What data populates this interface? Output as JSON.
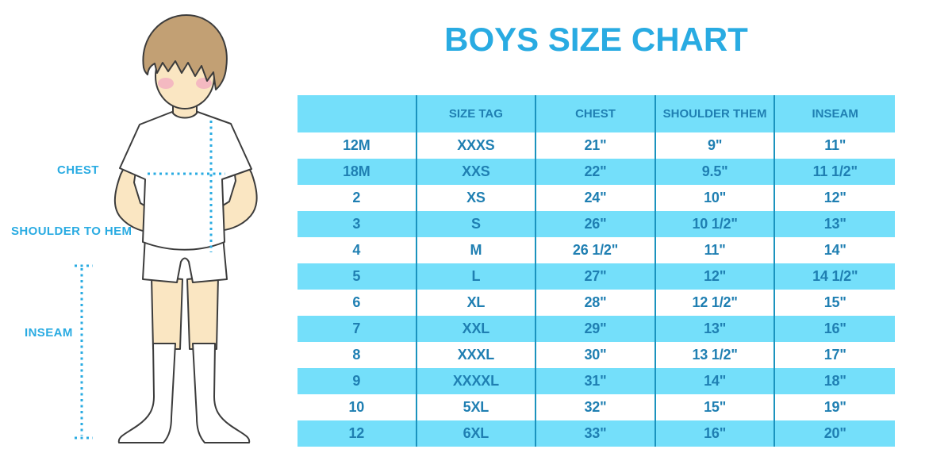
{
  "title": "BOYS SIZE CHART",
  "diagram": {
    "labels": {
      "chest": "CHEST",
      "shoulder_to_hem": "SHOULDER TO HEM",
      "inseam": "INSEAM"
    }
  },
  "table": {
    "headers": [
      "",
      "SIZE TAG",
      "CHEST",
      "SHOULDER THEM",
      "INSEAM"
    ],
    "rows": [
      [
        "12M",
        "XXXS",
        "21\"",
        "9\"",
        "11\""
      ],
      [
        "18M",
        "XXS",
        "22\"",
        "9.5\"",
        "11 1/2\""
      ],
      [
        "2",
        "XS",
        "24\"",
        "10\"",
        "12\""
      ],
      [
        "3",
        "S",
        "26\"",
        "10 1/2\"",
        "13\""
      ],
      [
        "4",
        "M",
        "26 1/2\"",
        "11\"",
        "14\""
      ],
      [
        "5",
        "L",
        "27\"",
        "12\"",
        "14 1/2\""
      ],
      [
        "6",
        "XL",
        "28\"",
        "12 1/2\"",
        "15\""
      ],
      [
        "7",
        "XXL",
        "29\"",
        "13\"",
        "16\""
      ],
      [
        "8",
        "XXXL",
        "30\"",
        "13 1/2\"",
        "17\""
      ],
      [
        "9",
        "XXXXL",
        "31\"",
        "14\"",
        "18\""
      ],
      [
        "10",
        "5XL",
        "32\"",
        "15\"",
        "19\""
      ],
      [
        "12",
        "6XL",
        "33\"",
        "16\"",
        "20\""
      ]
    ]
  },
  "colors": {
    "accent": "#29abe2",
    "row_band": "#74dffa",
    "column_divider": "#1b93be",
    "cell_text": "#1f7fb2",
    "skin": "#fae6c2",
    "hair": "#c2a074",
    "blush": "#f2aec0",
    "outline": "#3c3c3c",
    "background": "#ffffff"
  }
}
